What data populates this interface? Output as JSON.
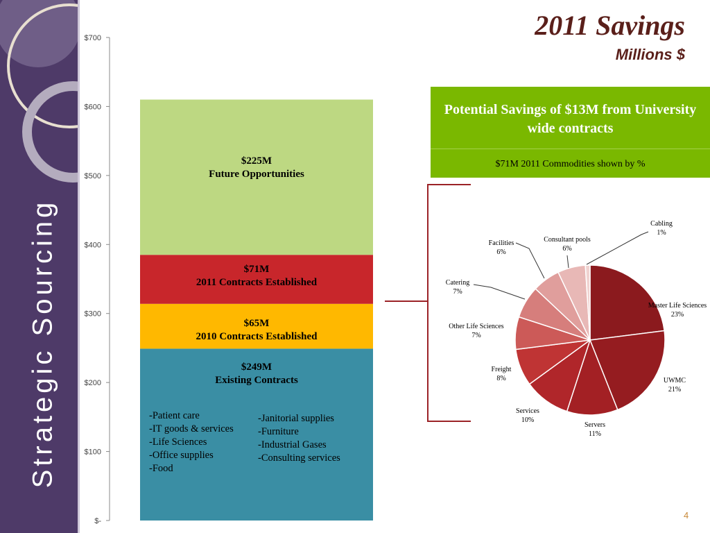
{
  "slide": {
    "title": "2011 Savings",
    "subtitle": "Millions $",
    "sidebar_title": "Strategic Sourcing",
    "page_number": "4"
  },
  "theme": {
    "sidebar": "#4e3a68",
    "title": "#5a1f1a",
    "green": "#7ab800"
  },
  "callout": {
    "title": "Potential Savings of $13M from University wide contracts",
    "subtitle": "$71M 2011 Commodities shown by %"
  },
  "contract_lists": {
    "left": [
      "-Patient care",
      "-IT goods & services",
      "-Life Sciences",
      "-Office supplies",
      "-Food"
    ],
    "right": [
      "-Janitorial supplies",
      "-Furniture",
      "-Industrial Gases",
      "-Consulting services"
    ]
  },
  "chart_data": [
    {
      "type": "bar",
      "stacked": true,
      "title": "2011 Savings",
      "ylabel": "Millions $",
      "ylim": [
        0,
        700
      ],
      "ticks": [
        0,
        100,
        200,
        300,
        400,
        500,
        600,
        700
      ],
      "tick_labels": [
        "$-",
        "$100",
        "$200",
        "$300",
        "$400",
        "$500",
        "$600",
        "$700"
      ],
      "series": [
        {
          "name": "Existing Contracts",
          "value": 249,
          "label": "$249M",
          "caption": "Existing Contracts",
          "color": "#3a8ea4"
        },
        {
          "name": "2010 Contracts Established",
          "value": 65,
          "label": "$65M",
          "caption": "2010 Contracts Established",
          "color": "#ffb800"
        },
        {
          "name": "2011 Contracts Established",
          "value": 71,
          "label": "$71M",
          "caption": "2011 Contracts Established",
          "color": "#c8262b"
        },
        {
          "name": "Future Opportunities",
          "value": 225,
          "label": "$225M",
          "caption": "Future Opportunities",
          "color": "#bdd882"
        }
      ]
    },
    {
      "type": "pie",
      "title": "$71M 2011 Commodities shown by %",
      "slices": [
        {
          "name": "Master Life Sciences",
          "value": 23,
          "pct": "23%",
          "color": "#8b1a1e"
        },
        {
          "name": "UWMC",
          "value": 21,
          "pct": "21%",
          "color": "#951c20"
        },
        {
          "name": "Servers",
          "value": 11,
          "pct": "11%",
          "color": "#a32024"
        },
        {
          "name": "Services",
          "value": 10,
          "pct": "10%",
          "color": "#b0262a"
        },
        {
          "name": "Freight",
          "value": 8,
          "pct": "8%",
          "color": "#bf3434"
        },
        {
          "name": "Other Life Sciences",
          "value": 7,
          "pct": "7%",
          "color": "#cc5a58"
        },
        {
          "name": "Catering",
          "value": 7,
          "pct": "7%",
          "color": "#d67e7c"
        },
        {
          "name": "Facilities",
          "value": 6,
          "pct": "6%",
          "color": "#e09e9c"
        },
        {
          "name": "Consultant pools",
          "value": 6,
          "pct": "6%",
          "color": "#e8b8b6"
        },
        {
          "name": "Cabling",
          "value": 1,
          "pct": "1%",
          "color": "#f0d2d0"
        }
      ]
    }
  ]
}
